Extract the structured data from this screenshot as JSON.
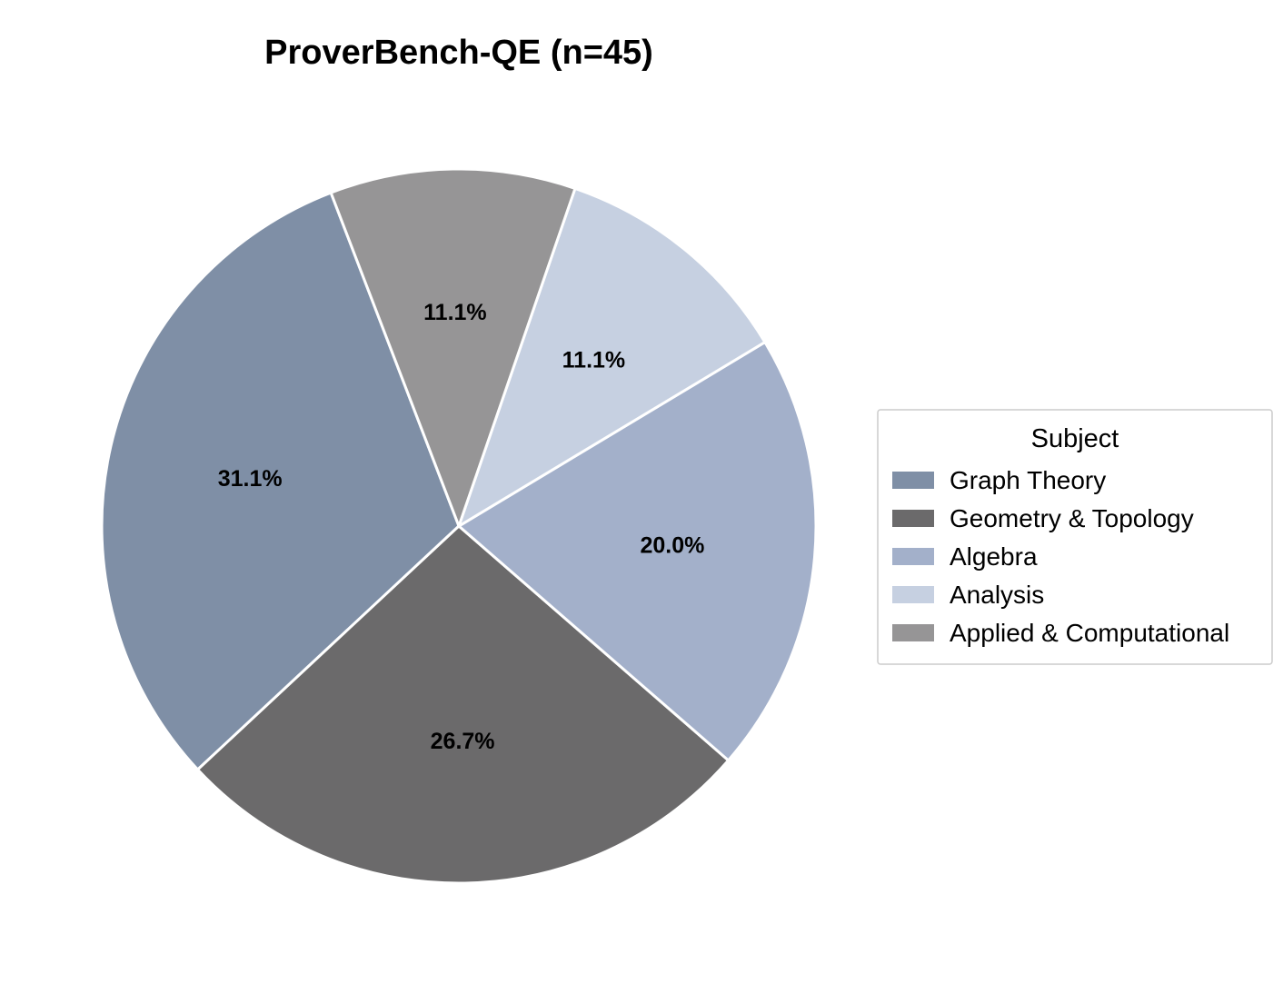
{
  "chart_data": {
    "type": "pie",
    "title": "ProverBench-QE  (n=45)",
    "legend_title": "Subject",
    "legend_placement": "right",
    "slices": [
      {
        "label": "Graph Theory",
        "value": 14,
        "percent_label": "31.1%",
        "color": "#7f8fa6"
      },
      {
        "label": "Geometry & Topology",
        "value": 12,
        "percent_label": "26.7%",
        "color": "#6b6a6b"
      },
      {
        "label": "Algebra",
        "value": 9,
        "percent_label": "20.0%",
        "color": "#a3b0ca"
      },
      {
        "label": "Analysis",
        "value": 5,
        "percent_label": "11.1%",
        "color": "#c6d0e1"
      },
      {
        "label": "Applied & Computational",
        "value": 5,
        "percent_label": "11.1%",
        "color": "#969596"
      }
    ],
    "edge_color": "#ffffff",
    "start_angle_deg": 111,
    "direction": "counterclockwise"
  }
}
